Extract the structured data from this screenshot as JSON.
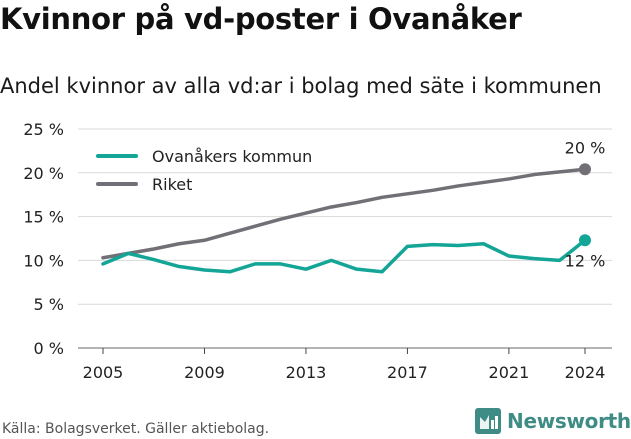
{
  "chart_data": {
    "type": "line",
    "title": "Kvinnor på vd-poster i Ovanåker",
    "subtitle": "Andel kvinnor av alla vd:ar i bolag med säte i kommunen",
    "x": [
      2005,
      2006,
      2007,
      2008,
      2009,
      2010,
      2011,
      2012,
      2013,
      2014,
      2015,
      2016,
      2017,
      2018,
      2019,
      2020,
      2021,
      2022,
      2023,
      2024
    ],
    "x_ticks": [
      "2005",
      "2009",
      "2013",
      "2017",
      "2021",
      "2024"
    ],
    "y_ticks": [
      "0 %",
      "5 %",
      "10 %",
      "15 %",
      "20 %",
      "25 %"
    ],
    "ylim": [
      0,
      25
    ],
    "series": [
      {
        "name": "Ovanåkers kommun",
        "color": "#13a596",
        "values": [
          9.6,
          10.8,
          10.1,
          9.3,
          8.9,
          8.7,
          9.6,
          9.6,
          9.0,
          10.0,
          9.0,
          8.7,
          11.6,
          11.8,
          11.7,
          11.9,
          10.5,
          10.2,
          10.0,
          12.3
        ],
        "end_label": "12 %"
      },
      {
        "name": "Riket",
        "color": "#727076",
        "values": [
          10.3,
          10.8,
          11.3,
          11.9,
          12.3,
          13.1,
          13.9,
          14.7,
          15.4,
          16.1,
          16.6,
          17.2,
          17.6,
          18.0,
          18.5,
          18.9,
          19.3,
          19.8,
          20.1,
          20.4
        ],
        "end_label": "20 %"
      }
    ],
    "grid": true,
    "legend": "top-left"
  },
  "source": "Källa: Bolagsverket. Gäller aktiebolag.",
  "logo_text": "Newsworthy",
  "logo_color": "#3f8c86"
}
